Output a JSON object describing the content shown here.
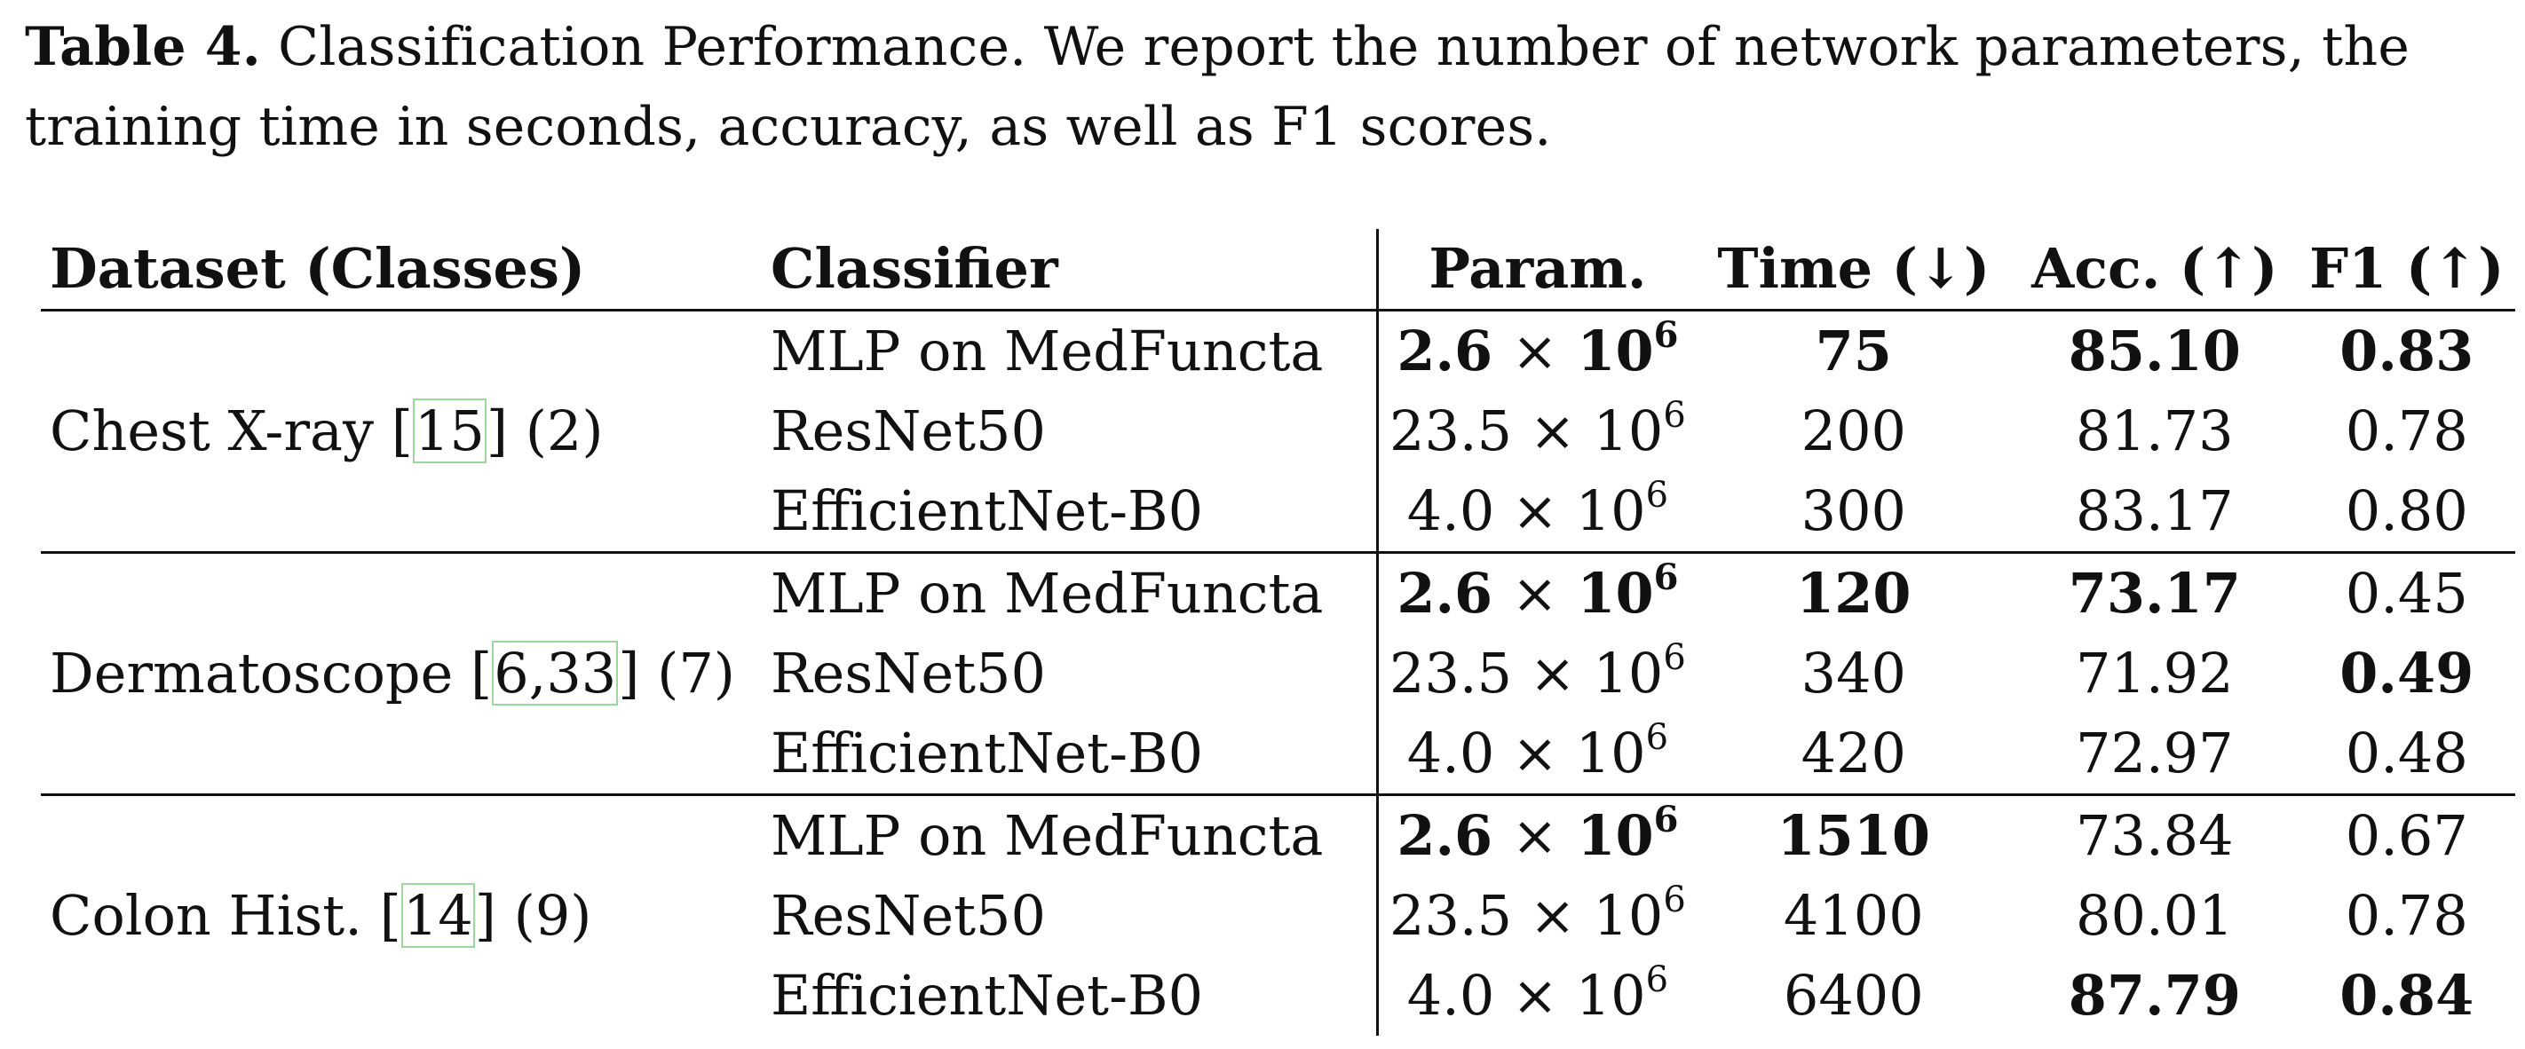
{
  "caption": {
    "label": "Table 4.",
    "text": " Classification Performance. We report the number of network parameters, the training time in seconds, accuracy, as well as F1 scores."
  },
  "headers": {
    "dataset": "Dataset (Classes)",
    "classifier": "Classifier",
    "param": "Param.",
    "time": "Time (↓)",
    "acc": "Acc. (↑)",
    "f1": "F1 (↑)"
  },
  "groups": [
    {
      "dataset_name": "Chest X-ray ",
      "citation": "15",
      "classes": " (2)",
      "rows": [
        {
          "classifier": "MLP on MedFuncta",
          "param_mantissa": "2.6",
          "param_exp": "6",
          "time": "75",
          "acc": "85.10",
          "f1": "0.83"
        },
        {
          "classifier": "ResNet50",
          "param_mantissa": "23.5",
          "param_exp": "6",
          "time": "200",
          "acc": "81.73",
          "f1": "0.78"
        },
        {
          "classifier": "EfficientNet-B0",
          "param_mantissa": "4.0",
          "param_exp": "6",
          "time": "300",
          "acc": "83.17",
          "f1": "0.80"
        }
      ]
    },
    {
      "dataset_name": "Dermatoscope ",
      "citation": "6,33",
      "classes": " (7)",
      "rows": [
        {
          "classifier": "MLP on MedFuncta",
          "param_mantissa": "2.6",
          "param_exp": "6",
          "time": "120",
          "acc": "73.17",
          "f1": "0.45"
        },
        {
          "classifier": "ResNet50",
          "param_mantissa": "23.5",
          "param_exp": "6",
          "time": "340",
          "acc": "71.92",
          "f1": "0.49"
        },
        {
          "classifier": "EfficientNet-B0",
          "param_mantissa": "4.0",
          "param_exp": "6",
          "time": "420",
          "acc": "72.97",
          "f1": "0.48"
        }
      ]
    },
    {
      "dataset_name": "Colon Hist. ",
      "citation": "14",
      "classes": " (9)",
      "rows": [
        {
          "classifier": "MLP on MedFuncta",
          "param_mantissa": "2.6",
          "param_exp": "6",
          "time": "1510",
          "acc": "73.84",
          "f1": "0.67"
        },
        {
          "classifier": "ResNet50",
          "param_mantissa": "23.5",
          "param_exp": "6",
          "time": "4100",
          "acc": "80.01",
          "f1": "0.78"
        },
        {
          "classifier": "EfficientNet-B0",
          "param_mantissa": "4.0",
          "param_exp": "6",
          "time": "6400",
          "acc": "87.79",
          "f1": "0.84"
        }
      ]
    }
  ],
  "times_sign": "×",
  "power_base": "10"
}
